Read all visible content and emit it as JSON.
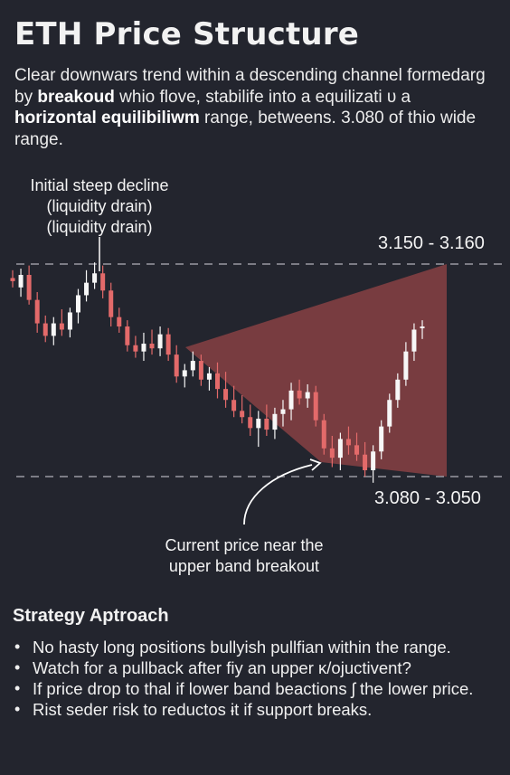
{
  "title": "ETH Price Structure",
  "intro": {
    "part1": "Clear downwars trend within a descending channel formedarg by ",
    "bold1": "breakoud",
    "part2": " whio flove, stabilife into a equilizati υ a ",
    "bold2": "horizontal equilibiliwm",
    "part3": " range, betweens. 3.080 of thio wide range."
  },
  "chart_data": {
    "type": "candlestick",
    "title": "",
    "xlabel": "",
    "ylabel": "",
    "levels": [
      {
        "name": "upper band",
        "label": "3.150 - 3.160"
      },
      {
        "name": "lower band",
        "label": "3.080 - 3.050"
      }
    ],
    "annotations": [
      {
        "lines": [
          "Initial steep decline",
          "(liquidity drain)",
          "(liquidity drain)"
        ]
      },
      {
        "lines": [
          "Current price near the",
          "upper band breakout"
        ]
      }
    ],
    "candles": [
      {
        "o": 3.153,
        "h": 3.158,
        "l": 3.147,
        "c": 3.151
      },
      {
        "o": 3.147,
        "h": 3.159,
        "l": 3.141,
        "c": 3.155
      },
      {
        "o": 3.155,
        "h": 3.161,
        "l": 3.136,
        "c": 3.139
      },
      {
        "o": 3.139,
        "h": 3.144,
        "l": 3.118,
        "c": 3.124
      },
      {
        "o": 3.124,
        "h": 3.129,
        "l": 3.112,
        "c": 3.116
      },
      {
        "o": 3.116,
        "h": 3.128,
        "l": 3.11,
        "c": 3.124
      },
      {
        "o": 3.124,
        "h": 3.133,
        "l": 3.116,
        "c": 3.12
      },
      {
        "o": 3.12,
        "h": 3.134,
        "l": 3.115,
        "c": 3.131
      },
      {
        "o": 3.131,
        "h": 3.146,
        "l": 3.124,
        "c": 3.142
      },
      {
        "o": 3.142,
        "h": 3.158,
        "l": 3.138,
        "c": 3.15
      },
      {
        "o": 3.15,
        "h": 3.163,
        "l": 3.146,
        "c": 3.156
      },
      {
        "o": 3.156,
        "h": 3.161,
        "l": 3.14,
        "c": 3.145
      },
      {
        "o": 3.145,
        "h": 3.15,
        "l": 3.122,
        "c": 3.128
      },
      {
        "o": 3.128,
        "h": 3.134,
        "l": 3.118,
        "c": 3.122
      },
      {
        "o": 3.122,
        "h": 3.126,
        "l": 3.106,
        "c": 3.11
      },
      {
        "o": 3.11,
        "h": 3.116,
        "l": 3.102,
        "c": 3.106
      },
      {
        "o": 3.106,
        "h": 3.118,
        "l": 3.1,
        "c": 3.111
      },
      {
        "o": 3.111,
        "h": 3.12,
        "l": 3.104,
        "c": 3.108
      },
      {
        "o": 3.108,
        "h": 3.122,
        "l": 3.103,
        "c": 3.117
      },
      {
        "o": 3.117,
        "h": 3.121,
        "l": 3.1,
        "c": 3.104
      },
      {
        "o": 3.104,
        "h": 3.11,
        "l": 3.086,
        "c": 3.09
      },
      {
        "o": 3.09,
        "h": 3.098,
        "l": 3.083,
        "c": 3.094
      },
      {
        "o": 3.094,
        "h": 3.106,
        "l": 3.09,
        "c": 3.1
      },
      {
        "o": 3.1,
        "h": 3.104,
        "l": 3.084,
        "c": 3.088
      },
      {
        "o": 3.088,
        "h": 3.096,
        "l": 3.081,
        "c": 3.092
      },
      {
        "o": 3.092,
        "h": 3.099,
        "l": 3.076,
        "c": 3.082
      },
      {
        "o": 3.082,
        "h": 3.093,
        "l": 3.07,
        "c": 3.075
      },
      {
        "o": 3.075,
        "h": 3.084,
        "l": 3.064,
        "c": 3.068
      },
      {
        "o": 3.068,
        "h": 3.078,
        "l": 3.06,
        "c": 3.064
      },
      {
        "o": 3.064,
        "h": 3.072,
        "l": 3.052,
        "c": 3.057
      },
      {
        "o": 3.057,
        "h": 3.068,
        "l": 3.045,
        "c": 3.063
      },
      {
        "o": 3.063,
        "h": 3.072,
        "l": 3.052,
        "c": 3.056
      },
      {
        "o": 3.056,
        "h": 3.07,
        "l": 3.05,
        "c": 3.066
      },
      {
        "o": 3.066,
        "h": 3.075,
        "l": 3.058,
        "c": 3.069
      },
      {
        "o": 3.069,
        "h": 3.086,
        "l": 3.062,
        "c": 3.081
      },
      {
        "o": 3.081,
        "h": 3.088,
        "l": 3.072,
        "c": 3.076
      },
      {
        "o": 3.076,
        "h": 3.085,
        "l": 3.07,
        "c": 3.08
      },
      {
        "o": 3.08,
        "h": 3.084,
        "l": 3.058,
        "c": 3.062
      },
      {
        "o": 3.062,
        "h": 3.066,
        "l": 3.04,
        "c": 3.044
      },
      {
        "o": 3.044,
        "h": 3.052,
        "l": 3.032,
        "c": 3.038
      },
      {
        "o": 3.038,
        "h": 3.054,
        "l": 3.03,
        "c": 3.05
      },
      {
        "o": 3.05,
        "h": 3.058,
        "l": 3.04,
        "c": 3.046
      },
      {
        "o": 3.046,
        "h": 3.054,
        "l": 3.036,
        "c": 3.04
      },
      {
        "o": 3.04,
        "h": 3.048,
        "l": 3.026,
        "c": 3.03
      },
      {
        "o": 3.03,
        "h": 3.046,
        "l": 3.022,
        "c": 3.042
      },
      {
        "o": 3.042,
        "h": 3.062,
        "l": 3.037,
        "c": 3.058
      },
      {
        "o": 3.058,
        "h": 3.079,
        "l": 3.054,
        "c": 3.075
      },
      {
        "o": 3.075,
        "h": 3.092,
        "l": 3.07,
        "c": 3.088
      },
      {
        "o": 3.088,
        "h": 3.112,
        "l": 3.084,
        "c": 3.106
      },
      {
        "o": 3.106,
        "h": 3.124,
        "l": 3.1,
        "c": 3.12
      },
      {
        "o": 3.121,
        "h": 3.126,
        "l": 3.114,
        "c": 3.122
      }
    ],
    "colors": {
      "up": "#f7f7f7",
      "down": "#e36a6a",
      "zone": "#b04c4c",
      "level": "#9a9aa2",
      "annotation": "#ffffff"
    }
  },
  "strategy": {
    "title": "Strategy Aptroach",
    "items": [
      "No hasty long positions bullyish pullfian within the range.",
      "Watch for a pullback after fiy an upper κ/ojuctivent?",
      "If price drop to thal if lower band beactions ʃ the lower price.",
      "Rist seder  risk to reductos ɨt if support breaks."
    ]
  }
}
